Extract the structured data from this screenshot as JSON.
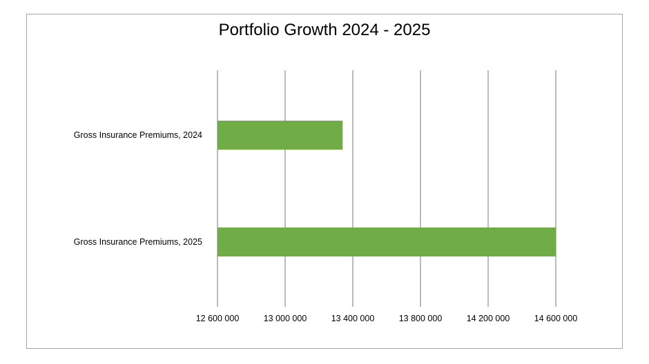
{
  "chart_data": {
    "type": "bar",
    "orientation": "horizontal",
    "title": "Portfolio Growth 2024 - 2025",
    "categories": [
      "Gross Insurance Premiums, 2024",
      "Gross Insurance Premiums, 2025"
    ],
    "series": [
      {
        "values": [
          13340000,
          14600000
        ],
        "color": "#70ad47"
      }
    ],
    "xlim": [
      12600000,
      14600000
    ],
    "xticks": [
      12600000,
      13000000,
      13400000,
      13800000,
      14200000,
      14600000
    ],
    "xtick_labels": [
      "12 600 000",
      "13 000 000",
      "13 400 000",
      "13 800 000",
      "14 200 000",
      "14 600 000"
    ],
    "grid": "vertical",
    "legend": "none",
    "gridline_color": "#8c8c8c",
    "frame_color": "#a6a6a6"
  }
}
